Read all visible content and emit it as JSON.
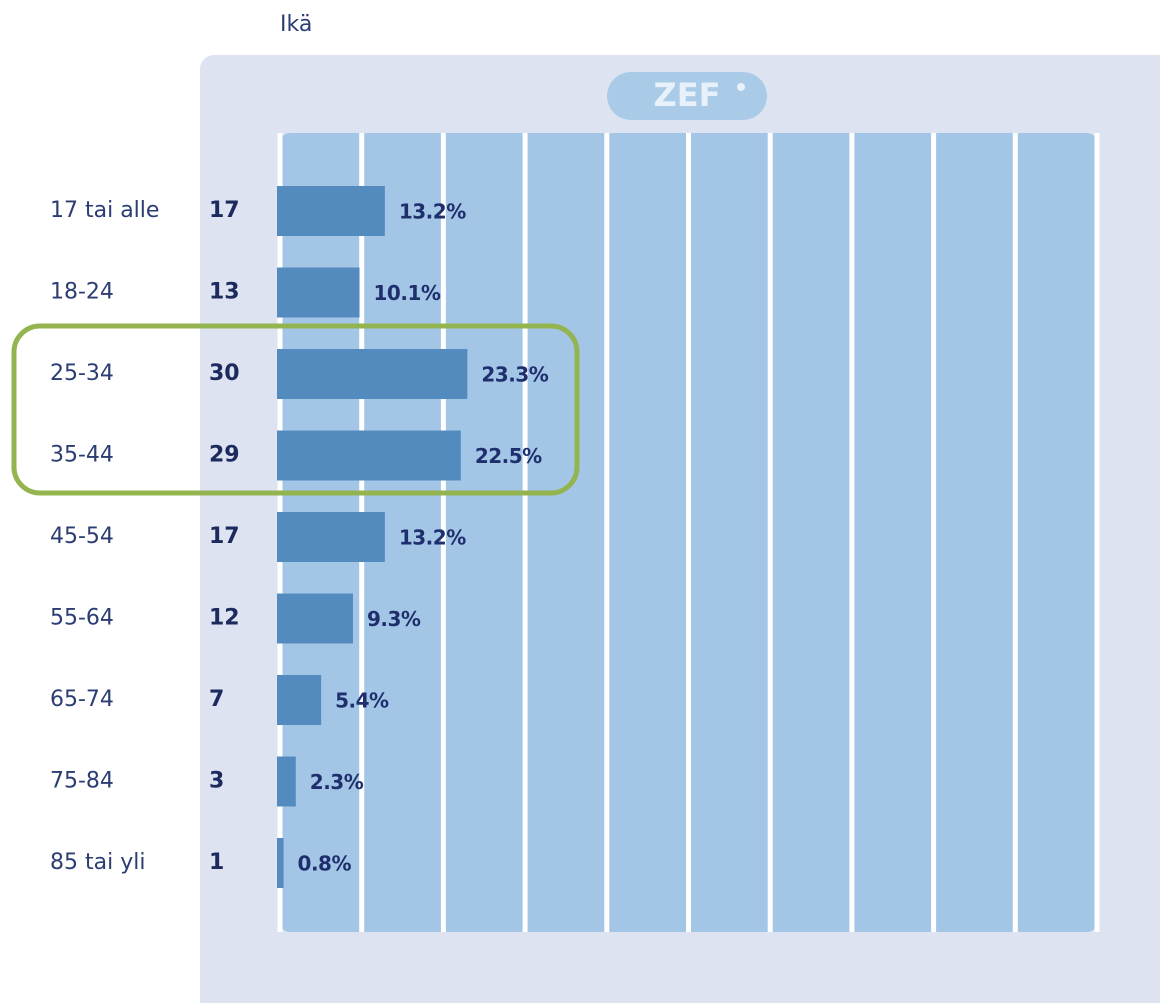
{
  "chart_data": {
    "type": "bar",
    "orientation": "horizontal",
    "title": "Ikä",
    "logo": "ZEF",
    "categories": [
      "17 tai alle",
      "18-24",
      "25-34",
      "35-44",
      "45-54",
      "55-64",
      "65-74",
      "75-84",
      "85 tai yli"
    ],
    "counts": [
      17,
      13,
      30,
      29,
      17,
      12,
      7,
      3,
      1
    ],
    "values": [
      13.2,
      10.1,
      23.3,
      22.5,
      13.2,
      9.3,
      5.4,
      2.3,
      0.8
    ],
    "value_labels": [
      "13.2%",
      "10.1%",
      "23.3%",
      "22.5%",
      "13.2%",
      "9.3%",
      "5.4%",
      "2.3%",
      "0.8%"
    ],
    "color": "#548bbf",
    "xlim": [
      0,
      100
    ],
    "xticks": [
      0,
      10,
      20,
      30,
      40,
      50,
      60,
      70,
      80,
      90,
      100
    ],
    "grid": true
  }
}
